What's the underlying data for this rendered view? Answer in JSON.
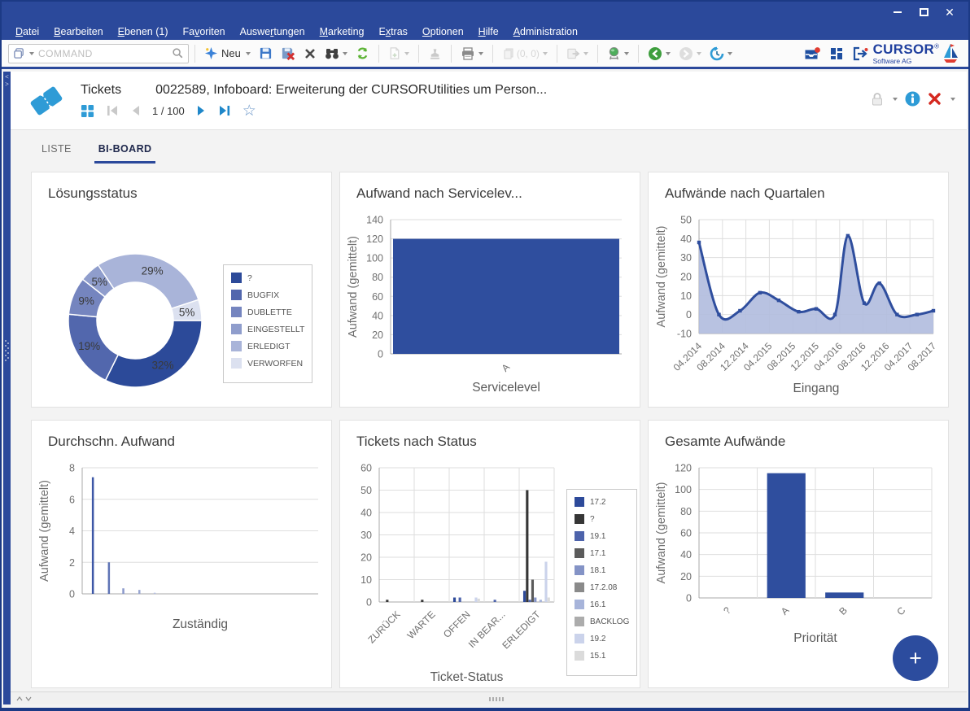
{
  "window": {
    "controls": [
      "minimize",
      "maximize",
      "close"
    ]
  },
  "menu": {
    "items": [
      {
        "label": "Datei",
        "accel": 0
      },
      {
        "label": "Bearbeiten",
        "accel": 0
      },
      {
        "label": "Ebenen (1)",
        "accel": 0
      },
      {
        "label": "Favoriten",
        "accel": 2
      },
      {
        "label": "Auswertungen",
        "accel": 5
      },
      {
        "label": "Marketing",
        "accel": 0
      },
      {
        "label": "Extras",
        "accel": 1
      },
      {
        "label": "Optionen",
        "accel": 0
      },
      {
        "label": "Hilfe",
        "accel": 0
      },
      {
        "label": "Administration",
        "accel": 0
      }
    ]
  },
  "toolbar": {
    "command_placeholder": "COMMAND",
    "new_button": "Neu",
    "copy_counter": "(0, 0)",
    "logo": {
      "name": "CURSOR",
      "registered": "®",
      "subtitle": "Software AG"
    },
    "icons": [
      "window-switch",
      "search",
      "new-sparkle",
      "save",
      "delete-record",
      "cancel",
      "binoculars",
      "refresh",
      "new-document",
      "stamp",
      "print",
      "copy-pages",
      "export",
      "web-search",
      "back",
      "forward",
      "history",
      "inbox-notification",
      "tiles",
      "logout",
      "sailboat-logo"
    ]
  },
  "record_header": {
    "entity": "Tickets",
    "title": "0022589, Infoboard: Erweiterung der CURSORUtilities um Person...",
    "pager": "1 / 100",
    "icons": [
      "ticket",
      "grid-view",
      "first-record",
      "previous-record",
      "next-record",
      "last-record",
      "favorite-star",
      "lock",
      "info",
      "close-record"
    ]
  },
  "tabs": [
    {
      "label": "LISTE",
      "active": false
    },
    {
      "label": "BI-BOARD",
      "active": true
    }
  ],
  "fab": {
    "label": "+"
  },
  "colors": {
    "accent_navy": "#2B499B",
    "azure": "#2394D2",
    "bar_blue": "#2F4E9E",
    "grid_line": "#DEDEDE",
    "axis_line": "#A8A8A8",
    "tick_text": "#6F6F6F"
  },
  "chart_data": [
    {
      "type": "pie",
      "donut": true,
      "title": "Lösungsstatus",
      "labels": [
        "?",
        "BUGFIX",
        "DUBLETTE",
        "EINGESTELLT",
        "ERLEDIGT",
        "VERWORFEN"
      ],
      "values": [
        32,
        19,
        9,
        5,
        29,
        5
      ],
      "slice_labels": [
        "32%",
        "19%",
        "9%",
        "5%",
        "29%",
        "5%"
      ],
      "colors": [
        "#2C4A99",
        "#5267AD",
        "#7585BF",
        "#8F9DCC",
        "#A9B4D9",
        "#DCE1F0"
      ],
      "legend_position": "right"
    },
    {
      "type": "bar",
      "title": "Aufwand nach Servicelev...",
      "categories": [
        "A"
      ],
      "values": [
        120
      ],
      "ylim": [
        0,
        140
      ],
      "ytick_step": 20,
      "xlabel": "Servicelevel",
      "ylabel": "Aufwand (gemittelt)",
      "bar_color": "#2F4E9E",
      "grid": true
    },
    {
      "type": "area",
      "title": "Aufwände nach Quartalen",
      "x_ticks": [
        "04.2014",
        "08.2014",
        "12.2014",
        "04.2015",
        "08.2015",
        "12.2015",
        "04.2016",
        "08.2016",
        "12.2016",
        "04.2017",
        "08.2017"
      ],
      "points": [
        [
          0,
          38
        ],
        [
          0.85,
          0
        ],
        [
          1.75,
          2
        ],
        [
          2.6,
          11.5
        ],
        [
          3.4,
          7.5
        ],
        [
          4.25,
          1.5
        ],
        [
          5,
          3
        ],
        [
          5.8,
          0
        ],
        [
          6.35,
          41.5
        ],
        [
          7.05,
          6
        ],
        [
          7.7,
          16.5
        ],
        [
          8.45,
          0
        ],
        [
          9.3,
          0
        ],
        [
          10,
          2
        ]
      ],
      "ylim": [
        -10,
        50
      ],
      "ytick_step": 10,
      "xlabel": "Eingang",
      "ylabel": "Aufwand (gemittelt)",
      "line_color": "#2F4E9E",
      "fill_color": "#B0BBDE",
      "grid": true
    },
    {
      "type": "bar",
      "title": "Durchschn. Aufwand",
      "bars": [
        {
          "pos": 0.041,
          "value": 7.4
        },
        {
          "pos": 0.109,
          "value": 2.0
        },
        {
          "pos": 0.17,
          "value": 0.35
        },
        {
          "pos": 0.238,
          "value": 0.25
        },
        {
          "pos": 0.303,
          "value": 0.07
        }
      ],
      "bar_colors": [
        "#3D57A6",
        "#5F74B6",
        "#8B99CB",
        "#99A6D1",
        "#B7C0E0"
      ],
      "ylim": [
        0,
        8
      ],
      "ytick_step": 2,
      "xlabel": "Zuständig",
      "ylabel": "Aufwand (gemittelt)",
      "grid": true
    },
    {
      "type": "bar-grouped",
      "title": "Tickets nach Status",
      "categories": [
        "ZURÜCK",
        "WARTE",
        "OFFEN",
        "IN BEAR...",
        "ERLEDIGT"
      ],
      "ylim": [
        0,
        60
      ],
      "ytick_step": 10,
      "xlabel": "Ticket-Status",
      "series": [
        {
          "name": "17.2",
          "color": "#2D4A9A",
          "values": [
            0,
            0,
            2,
            0,
            5
          ]
        },
        {
          "name": "?",
          "color": "#363636",
          "values": [
            1,
            1,
            0,
            0,
            50
          ]
        },
        {
          "name": "19.1",
          "color": "#4D63AB",
          "values": [
            0,
            0,
            2,
            1,
            1
          ]
        },
        {
          "name": "17.1",
          "color": "#5B5B5B",
          "values": [
            0,
            0,
            0,
            0,
            10
          ]
        },
        {
          "name": "18.1",
          "color": "#8493C6",
          "values": [
            0,
            0,
            0,
            0,
            2
          ]
        },
        {
          "name": "17.2.08",
          "color": "#8A8A8A",
          "values": [
            0,
            0,
            0,
            0,
            0
          ]
        },
        {
          "name": "16.1",
          "color": "#A7B4DA",
          "values": [
            0,
            0,
            0,
            0,
            1
          ]
        },
        {
          "name": "BACKLOG",
          "color": "#ACACAC",
          "values": [
            0,
            0,
            0,
            0,
            0
          ]
        },
        {
          "name": "19.2",
          "color": "#CBD3EB",
          "values": [
            0,
            0,
            2,
            0,
            18
          ]
        },
        {
          "name": "15.1",
          "color": "#DBDBDB",
          "values": [
            0,
            0,
            1.5,
            0,
            2
          ]
        }
      ],
      "legend_position": "right",
      "grid": true
    },
    {
      "type": "bar",
      "title": "Gesamte Aufwände",
      "categories": [
        "?",
        "A",
        "B",
        "C"
      ],
      "values": [
        0,
        115,
        5,
        0
      ],
      "ylim": [
        0,
        120
      ],
      "ytick_step": 20,
      "xlabel": "Priorität",
      "ylabel": "Aufwand (gemittelt)",
      "bar_color": "#2F4E9E",
      "grid": true,
      "vgrid": true
    }
  ]
}
